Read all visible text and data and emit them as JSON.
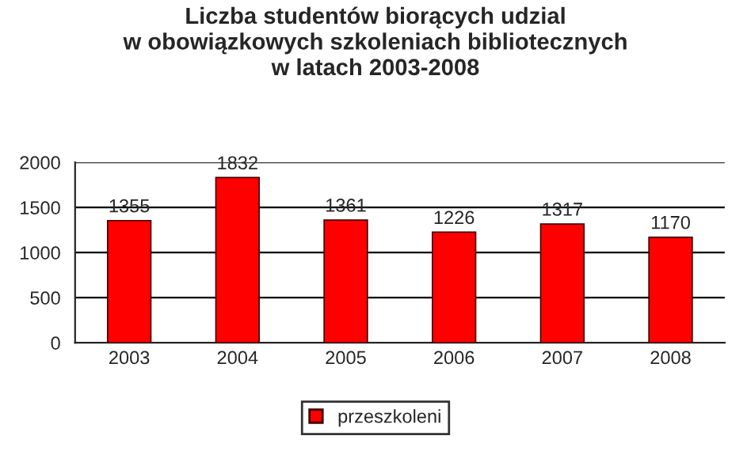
{
  "chart_data": {
    "type": "bar",
    "title": "Liczba studentów biorących udzial\nw obowiązkowych szkoleniach bibliotecznych\nw latach 2003-2008",
    "categories": [
      "2003",
      "2004",
      "2005",
      "2006",
      "2007",
      "2008"
    ],
    "series": [
      {
        "name": "przeszkoleni",
        "color": "#ff0000",
        "values": [
          1355,
          1832,
          1361,
          1226,
          1317,
          1170
        ]
      }
    ],
    "ylim": [
      0,
      2000
    ],
    "yticks": [
      0,
      500,
      1000,
      1500,
      2000
    ],
    "grid": "y",
    "legend": "bottom",
    "data_labels": true
  }
}
